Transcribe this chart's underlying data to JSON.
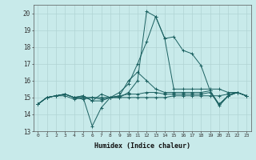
{
  "title": "",
  "xlabel": "Humidex (Indice chaleur)",
  "background_color": "#c8eaea",
  "grid_color": "#b0d4d4",
  "line_color": "#1a6060",
  "xlim": [
    -0.5,
    23.5
  ],
  "ylim": [
    13,
    20.5
  ],
  "yticks": [
    13,
    14,
    15,
    16,
    17,
    18,
    19,
    20
  ],
  "xticks": [
    0,
    1,
    2,
    3,
    4,
    5,
    6,
    7,
    8,
    9,
    10,
    11,
    12,
    13,
    14,
    15,
    16,
    17,
    18,
    19,
    20,
    21,
    22,
    23
  ],
  "series": [
    [
      14.6,
      15.0,
      15.1,
      15.1,
      14.9,
      15.0,
      13.3,
      14.4,
      15.0,
      15.0,
      15.3,
      16.0,
      20.1,
      19.8,
      18.5,
      18.6,
      17.8,
      17.6,
      16.9,
      15.4,
      14.5,
      15.1,
      15.3,
      15.1
    ],
    [
      14.6,
      15.0,
      15.1,
      15.2,
      15.0,
      15.0,
      15.0,
      15.0,
      15.0,
      15.0,
      15.0,
      15.0,
      15.0,
      15.0,
      15.0,
      15.1,
      15.1,
      15.1,
      15.1,
      15.1,
      15.1,
      15.2,
      15.3,
      15.1
    ],
    [
      14.6,
      15.0,
      15.1,
      15.2,
      15.0,
      15.1,
      14.8,
      14.8,
      15.0,
      15.3,
      15.8,
      17.0,
      18.3,
      19.8,
      18.5,
      15.5,
      15.5,
      15.5,
      15.5,
      15.5,
      15.5,
      15.3,
      15.3,
      15.1
    ],
    [
      14.6,
      15.0,
      15.1,
      15.2,
      15.0,
      15.1,
      14.8,
      15.2,
      15.0,
      15.1,
      16.0,
      16.5,
      16.0,
      15.5,
      15.3,
      15.3,
      15.3,
      15.3,
      15.3,
      15.4,
      14.6,
      15.1,
      15.3,
      15.1
    ],
    [
      14.6,
      15.0,
      15.1,
      15.2,
      15.0,
      14.9,
      15.0,
      14.9,
      15.0,
      15.1,
      15.2,
      15.2,
      15.3,
      15.3,
      15.2,
      15.2,
      15.2,
      15.2,
      15.2,
      15.3,
      14.6,
      15.1,
      15.3,
      15.1
    ]
  ],
  "xlabel_fontsize": 6,
  "xlabel_color": "#111111",
  "tick_fontsize": 4.5,
  "ytick_fontsize": 5.5,
  "linewidth": 0.7,
  "markersize": 2.5
}
